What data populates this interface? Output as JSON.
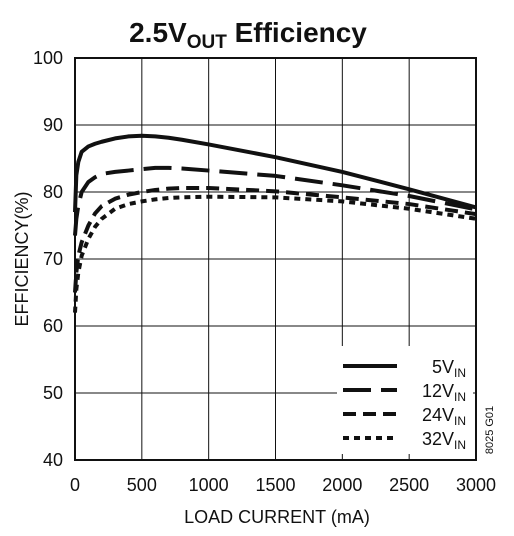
{
  "chart_data": {
    "type": "line",
    "title": {
      "lead": "2.5V",
      "subscript": "OUT",
      "trail": " Efficiency"
    },
    "xlabel": "LOAD CURRENT (mA)",
    "ylabel": "EFFICIENCY(%)",
    "xlim": [
      0,
      3000
    ],
    "ylim": [
      40,
      100
    ],
    "x_ticks": [
      0,
      500,
      1000,
      1500,
      2000,
      2500,
      3000
    ],
    "y_ticks": [
      40,
      50,
      60,
      70,
      80,
      90,
      100
    ],
    "grid": true,
    "legend_position": "bottom-right",
    "figure_code": "8025 G01",
    "series": [
      {
        "name": "5V",
        "name_sub": "IN",
        "line_style": "solid",
        "color": "#111111",
        "x": [
          0,
          10,
          25,
          50,
          100,
          150,
          200,
          300,
          400,
          500,
          600,
          700,
          800,
          1000,
          1500,
          2000,
          2500,
          3000
        ],
        "y": [
          77,
          82.5,
          84.5,
          86,
          86.8,
          87.2,
          87.5,
          88,
          88.3,
          88.4,
          88.3,
          88.1,
          87.8,
          87.1,
          85.2,
          83,
          80.4,
          77.7
        ]
      },
      {
        "name": "12V",
        "name_sub": "IN",
        "line_style": "long-dash",
        "color": "#111111",
        "x": [
          0,
          10,
          25,
          50,
          100,
          150,
          200,
          300,
          400,
          500,
          600,
          700,
          800,
          1000,
          1500,
          2000,
          2500,
          3000
        ],
        "y": [
          73.5,
          76,
          78,
          80,
          81.5,
          82.2,
          82.7,
          83,
          83.2,
          83.4,
          83.6,
          83.6,
          83.5,
          83.2,
          82.4,
          81,
          79.4,
          77.4
        ]
      },
      {
        "name": "24V",
        "name_sub": "IN",
        "line_style": "dash",
        "color": "#111111",
        "x": [
          0,
          10,
          25,
          50,
          100,
          150,
          200,
          300,
          400,
          500,
          600,
          700,
          800,
          1000,
          1500,
          2000,
          2500,
          3000
        ],
        "y": [
          65,
          68,
          70.5,
          72.5,
          75,
          76.8,
          77.9,
          79,
          79.6,
          80,
          80.3,
          80.5,
          80.6,
          80.6,
          80.1,
          79.2,
          78.2,
          76.7
        ]
      },
      {
        "name": "32V",
        "name_sub": "IN",
        "line_style": "dot",
        "color": "#111111",
        "x": [
          0,
          10,
          25,
          50,
          100,
          150,
          200,
          300,
          400,
          500,
          600,
          700,
          800,
          1000,
          1500,
          2000,
          2500,
          3000
        ],
        "y": [
          62,
          65.5,
          68,
          70.5,
          73,
          74.8,
          76,
          77.5,
          78.2,
          78.6,
          78.9,
          79.1,
          79.2,
          79.3,
          79.2,
          78.6,
          77.5,
          76
        ]
      }
    ]
  }
}
